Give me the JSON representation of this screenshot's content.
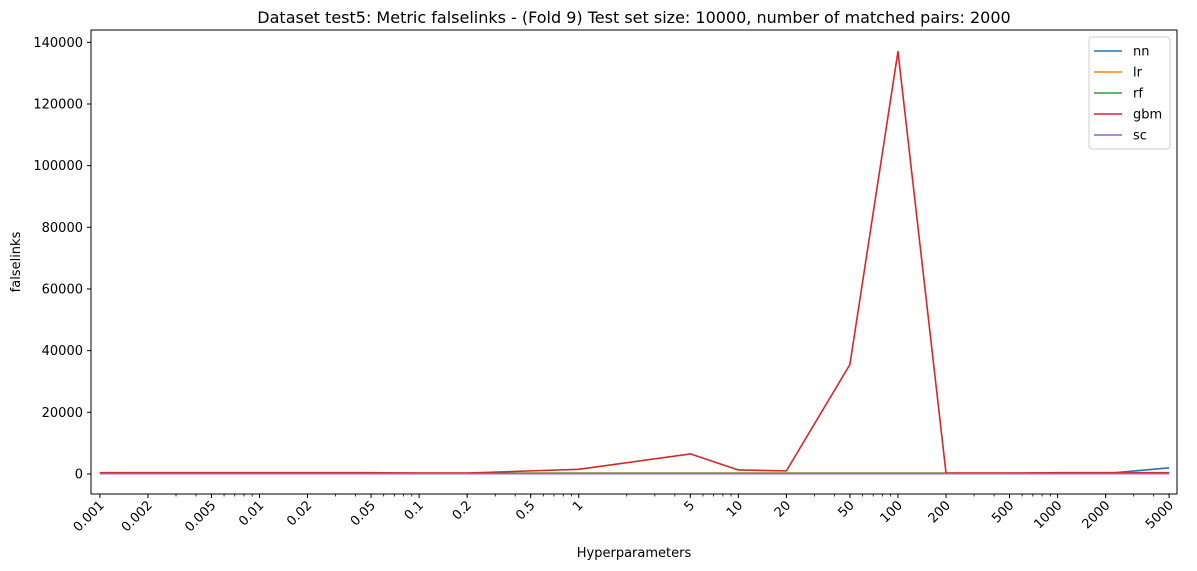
{
  "chart_data": {
    "type": "line",
    "title": "Dataset test5: Metric falselinks - (Fold 9) Test set size: 10000, number of matched pairs: 2000",
    "xlabel": "Hyperparameters",
    "ylabel": "falselinks",
    "xscale": "log",
    "xlim": [
      0.00088,
      5600
    ],
    "ylim": [
      -6500,
      144000
    ],
    "xticks": [
      0.001,
      0.002,
      0.005,
      0.01,
      0.02,
      0.05,
      0.1,
      0.2,
      0.5,
      1,
      5,
      10,
      20,
      50,
      100,
      200,
      500,
      1000,
      2000,
      5000
    ],
    "xtick_labels": [
      "0.001",
      "0.002",
      "0.005",
      "0.01",
      "0.02",
      "0.05",
      "0.1",
      "0.2",
      "0.5",
      "1",
      "5",
      "10",
      "20",
      "50",
      "100",
      "200",
      "500",
      "1000",
      "2000",
      "5000"
    ],
    "yticks": [
      0,
      20000,
      40000,
      60000,
      80000,
      100000,
      120000,
      140000
    ],
    "ytick_labels": [
      "0",
      "20000",
      "40000",
      "60000",
      "80000",
      "100000",
      "120000",
      "140000"
    ],
    "grid": false,
    "legend_position": "top-right",
    "x": [
      0.001,
      0.002,
      0.005,
      0.01,
      0.02,
      0.05,
      0.1,
      0.2,
      0.5,
      1,
      5,
      10,
      20,
      50,
      100,
      200,
      500,
      1000,
      2000,
      5000
    ],
    "series": [
      {
        "name": "nn",
        "color": "#1f77b4",
        "values": [
          150,
          150,
          150,
          150,
          150,
          150,
          150,
          150,
          150,
          150,
          150,
          150,
          150,
          150,
          150,
          150,
          150,
          150,
          150,
          2000
        ]
      },
      {
        "name": "lr",
        "color": "#ff7f0e",
        "values": [
          300,
          300,
          300,
          300,
          300,
          300,
          300,
          300,
          300,
          300,
          300,
          300,
          300,
          300,
          300,
          300,
          300,
          300,
          300,
          300
        ]
      },
      {
        "name": "rf",
        "color": "#2ca02c",
        "values": [
          200,
          200,
          200,
          200,
          200,
          200,
          200,
          200,
          200,
          200,
          200,
          200,
          200,
          200,
          200,
          200,
          200,
          200,
          200,
          200
        ]
      },
      {
        "name": "gbm",
        "color": "#d62728",
        "values": [
          400,
          400,
          400,
          400,
          400,
          400,
          300,
          300,
          1000,
          1500,
          6500,
          1300,
          1000,
          35500,
          137000,
          350,
          300,
          400,
          400,
          400
        ]
      },
      {
        "name": "sc",
        "color": "#9467bd",
        "values": [
          100,
          100,
          100,
          100,
          100,
          100,
          100,
          100,
          100,
          100,
          100,
          100,
          100,
          100,
          100,
          100,
          100,
          100,
          100,
          100
        ]
      }
    ]
  }
}
